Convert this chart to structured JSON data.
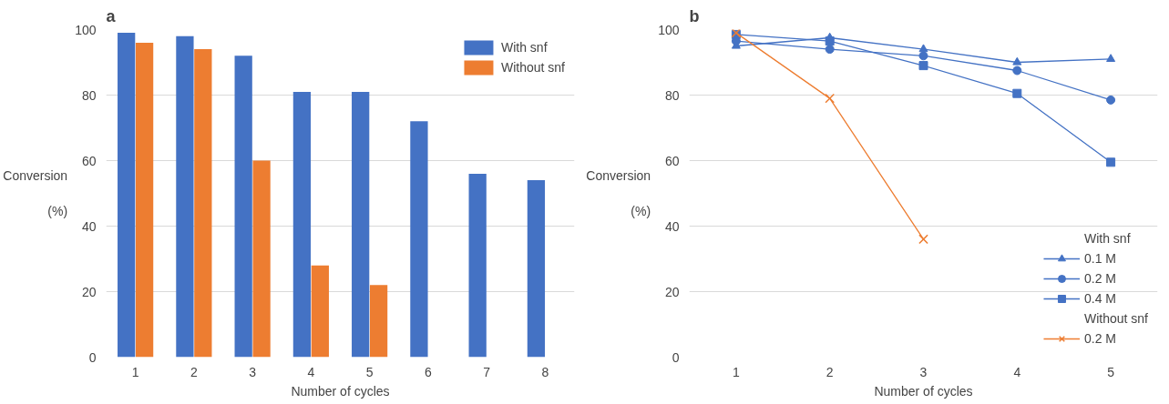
{
  "chart_data": [
    {
      "type": "bar",
      "title": "a",
      "xlabel": "Number of cycles",
      "ylabel": "Conversion\n\n(%)",
      "categories": [
        "1",
        "2",
        "3",
        "4",
        "5",
        "6",
        "7",
        "8"
      ],
      "series": [
        {
          "name": "With snf",
          "color": "#4472c4",
          "values": [
            99,
            98,
            92,
            81,
            81,
            72,
            56,
            54
          ]
        },
        {
          "name": "Without snf",
          "color": "#ed7d31",
          "values": [
            96,
            94,
            60,
            28,
            22,
            null,
            null,
            null
          ]
        }
      ],
      "ylim": [
        0,
        100
      ],
      "yticks": [
        0,
        20,
        40,
        60,
        80,
        100
      ],
      "grid": "y",
      "legend": "top right"
    },
    {
      "type": "line",
      "title": "b",
      "xlabel": "Number of cycles",
      "ylabel": "Conversion\n\n(%)",
      "categories": [
        "1",
        "2",
        "3",
        "4",
        "5"
      ],
      "annotations": [
        "With snf",
        "Without snf"
      ],
      "series": [
        {
          "name": "0.1 M",
          "color": "#4472c4",
          "marker": "triangle",
          "values": [
            95,
            97.5,
            94,
            90,
            91
          ]
        },
        {
          "name": "0.2 M",
          "color": "#4472c4",
          "marker": "circle",
          "values": [
            96.5,
            94,
            92,
            87.5,
            78.5
          ]
        },
        {
          "name": "0.4 M",
          "color": "#4472c4",
          "marker": "square",
          "values": [
            98.5,
            96.5,
            89,
            80.5,
            59.5
          ]
        },
        {
          "name": "0.2 M",
          "color": "#ed7d31",
          "marker": "cross",
          "values": [
            99,
            79,
            36,
            null,
            null
          ]
        }
      ],
      "ylim": [
        0,
        100
      ],
      "yticks": [
        0,
        20,
        40,
        60,
        80,
        100
      ],
      "grid": "y",
      "legend": "bottom right"
    }
  ]
}
